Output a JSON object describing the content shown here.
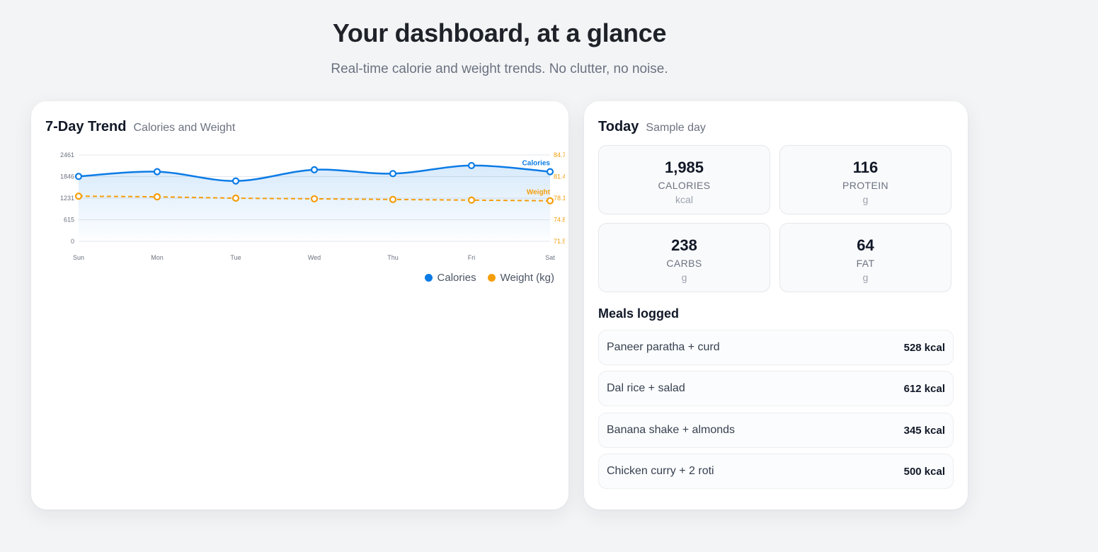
{
  "hero": {
    "title": "Your dashboard, at a glance",
    "subtitle": "Real-time calorie and weight trends. No clutter, no noise."
  },
  "trend": {
    "title": "7-Day Trend",
    "subtitle": "Calories and Weight",
    "legend": [
      {
        "label": "Calories",
        "color": "#0b7be6"
      },
      {
        "label": "Weight (kg)",
        "color": "#f59e0b"
      }
    ]
  },
  "chart_data": {
    "type": "line",
    "categories": [
      "Sun",
      "Mon",
      "Tue",
      "Wed",
      "Thu",
      "Fri",
      "Sat"
    ],
    "y_left": {
      "ticks": [
        "0",
        "615",
        "1231",
        "1846",
        "2461"
      ],
      "range": [
        0,
        2461
      ]
    },
    "y_right": {
      "ticks": [
        "71.5",
        "74.8",
        "78.1",
        "81.4",
        "84.7"
      ],
      "range": [
        71.5,
        84.7
      ]
    },
    "series": [
      {
        "name": "Calories",
        "axis": "left",
        "color": "#0b7be6",
        "style": "solid-area",
        "end_label": "Calories",
        "values": [
          1850,
          1985,
          1720,
          2040,
          1930,
          2160,
          1985
        ]
      },
      {
        "name": "Weight (kg)",
        "axis": "right",
        "color": "#f59e0b",
        "style": "dashed",
        "end_label": "Weight",
        "values": [
          78.4,
          78.3,
          78.1,
          78.0,
          77.9,
          77.8,
          77.7
        ]
      }
    ],
    "grid": true
  },
  "today": {
    "title": "Today",
    "subtitle": "Sample day",
    "macros": [
      {
        "value": "1,985",
        "label": "CALORIES",
        "unit": "kcal"
      },
      {
        "value": "116",
        "label": "PROTEIN",
        "unit": "g"
      },
      {
        "value": "238",
        "label": "CARBS",
        "unit": "g"
      },
      {
        "value": "64",
        "label": "FAT",
        "unit": "g"
      }
    ],
    "meals_title": "Meals logged",
    "meals": [
      {
        "name": "Paneer paratha + curd",
        "kcal": "528 kcal"
      },
      {
        "name": "Dal rice + salad",
        "kcal": "612 kcal"
      },
      {
        "name": "Banana shake + almonds",
        "kcal": "345 kcal"
      },
      {
        "name": "Chicken curry + 2 roti",
        "kcal": "500 kcal"
      }
    ]
  }
}
